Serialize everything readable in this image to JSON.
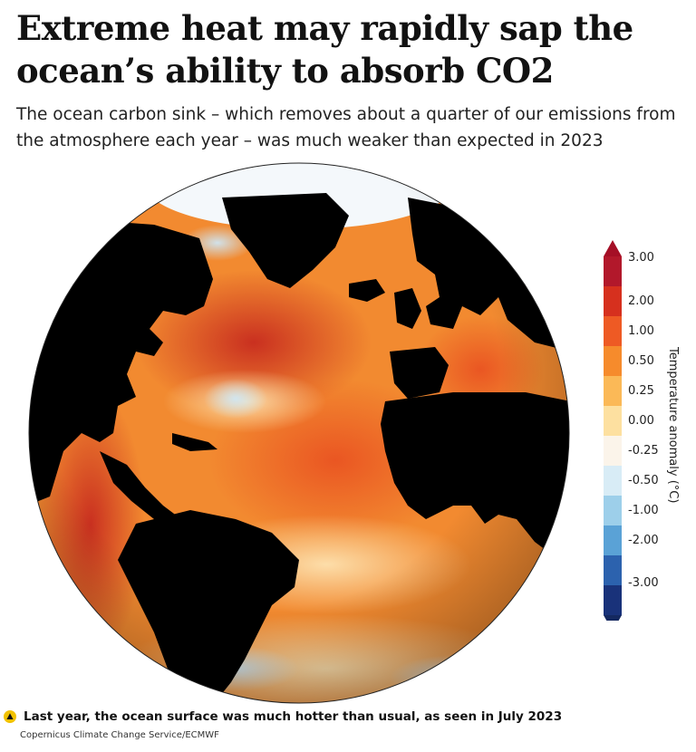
{
  "article": {
    "headline": "Extreme heat may rapidly sap the ocean’s ability to absorb CO2",
    "standfirst": "The ocean carbon sink – which removes about a quarter of our emissions from the atmosphere each year – was much weaker than expected in 2023"
  },
  "map": {
    "subject": "Global sea surface temperature anomaly, July 2023",
    "land_color": "#000000",
    "legend": {
      "title": "Temperature anomaly (°C)",
      "ticks": [
        "3.00",
        "2.00",
        "1.00",
        "0.50",
        "0.25",
        "0.00",
        "-0.25",
        "-0.50",
        "-1.00",
        "-2.00",
        "-3.00"
      ],
      "colors": [
        "#b2182b",
        "#d6301e",
        "#ee5a24",
        "#f68b2c",
        "#fbb957",
        "#fde0a0",
        "#fbf4ea",
        "#d8ecf6",
        "#9dcfea",
        "#5aa2d6",
        "#2c62ae",
        "#19327a"
      ],
      "top_arrow_color": "#a50f26",
      "bottom_arrow_color": "#14285f"
    }
  },
  "caption": {
    "icon": "triangle-up-icon",
    "text": "Last year, the ocean surface was much hotter than usual, as seen in July 2023",
    "credit": "Copernicus Climate Change Service/ECMWF"
  }
}
